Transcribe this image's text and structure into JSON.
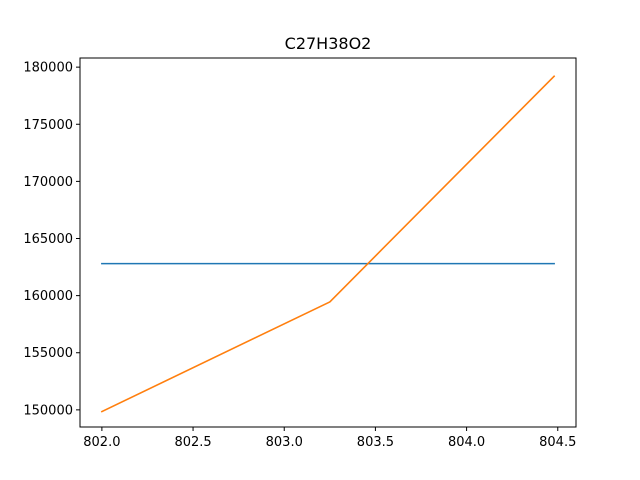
{
  "chart_data": {
    "type": "line",
    "title": "C27H38O2",
    "xlabel": "",
    "ylabel": "",
    "xlim": [
      801.88,
      804.6
    ],
    "ylim": [
      148500,
      180800
    ],
    "grid": false,
    "legend": "none",
    "x_ticks": [
      802.0,
      802.5,
      803.0,
      803.5,
      804.0,
      804.5
    ],
    "x_tick_labels": [
      "802.0",
      "802.5",
      "803.0",
      "803.5",
      "804.0",
      "804.5"
    ],
    "y_ticks": [
      150000,
      155000,
      160000,
      165000,
      170000,
      175000,
      180000
    ],
    "y_tick_labels": [
      "150000",
      "155000",
      "160000",
      "165000",
      "170000",
      "175000",
      "180000"
    ],
    "series": [
      {
        "color": "#1f77b4",
        "points": [
          [
            802.0,
            162800
          ],
          [
            804.48,
            162800
          ]
        ]
      },
      {
        "color": "#ff7f0e",
        "points": [
          [
            802.0,
            149850
          ],
          [
            803.25,
            159450
          ],
          [
            804.48,
            179200
          ]
        ]
      }
    ]
  }
}
